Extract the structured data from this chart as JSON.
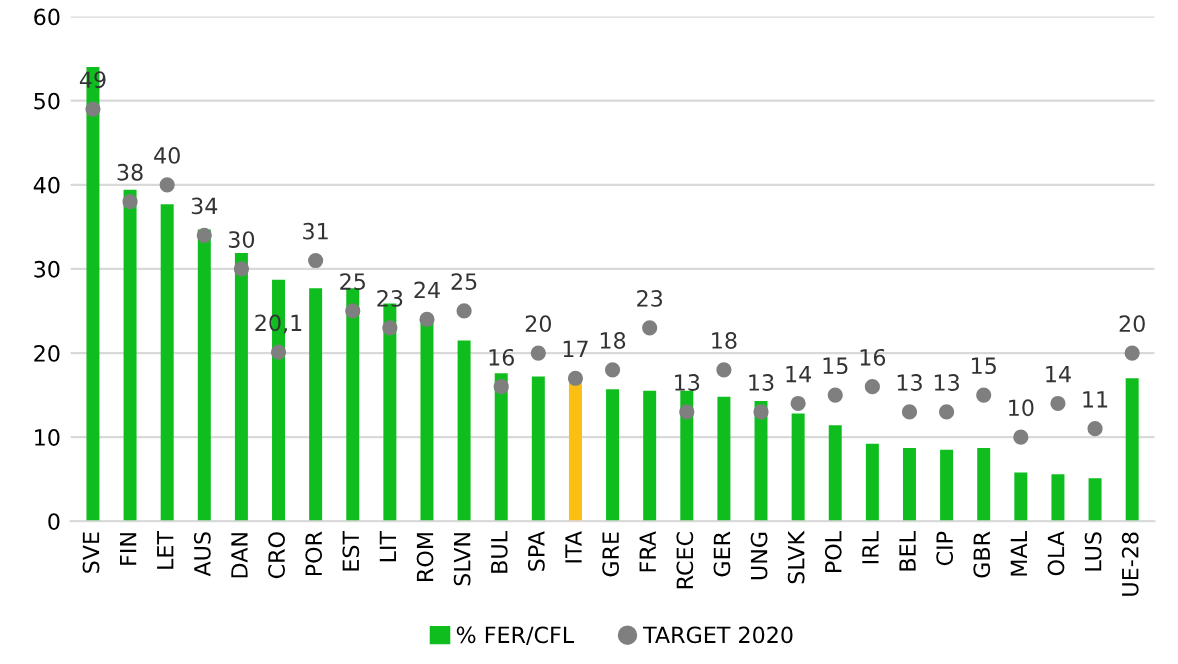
{
  "chart_data": {
    "type": "bar",
    "categories": [
      "SVE",
      "FIN",
      "LET",
      "AUS",
      "DAN",
      "CRO",
      "POR",
      "EST",
      "LIT",
      "ROM",
      "SLVN",
      "BUL",
      "SPA",
      "ITA",
      "GRE",
      "FRA",
      "RCEC",
      "GER",
      "UNG",
      "SLVK",
      "POL",
      "IRL",
      "BEL",
      "CIP",
      "GBR",
      "MAL",
      "OLA",
      "LUS",
      "UE-28"
    ],
    "series": [
      {
        "name": "% FER/CFL",
        "color": "#0fbe1e",
        "colors": [
          "#0fbe1e",
          "#0fbe1e",
          "#0fbe1e",
          "#0fbe1e",
          "#0fbe1e",
          "#0fbe1e",
          "#0fbe1e",
          "#0fbe1e",
          "#0fbe1e",
          "#0fbe1e",
          "#0fbe1e",
          "#0fbe1e",
          "#0fbe1e",
          "#fbbf14",
          "#0fbe1e",
          "#0fbe1e",
          "#0fbe1e",
          "#0fbe1e",
          "#0fbe1e",
          "#0fbe1e",
          "#0fbe1e",
          "#0fbe1e",
          "#0fbe1e",
          "#0fbe1e",
          "#0fbe1e",
          "#0fbe1e",
          "#0fbe1e",
          "#0fbe1e",
          "#0fbe1e"
        ],
        "values": [
          54,
          39.4,
          37.7,
          34.7,
          31.9,
          28.7,
          27.7,
          27.7,
          25.9,
          24,
          21.5,
          17.6,
          17.2,
          16.6,
          15.7,
          15.5,
          15.5,
          14.8,
          14.3,
          12.8,
          11.4,
          9.2,
          8.7,
          8.5,
          8.7,
          5.8,
          5.6,
          5.1,
          17
        ]
      },
      {
        "name": "TARGET 2020",
        "type": "scatter",
        "marker": "circle",
        "color": "#7f7f7f",
        "values": [
          49,
          38,
          40,
          34,
          30,
          20.1,
          31,
          25,
          23,
          24,
          25,
          16,
          20,
          17,
          18,
          23,
          13,
          18,
          13,
          14,
          15,
          16,
          13,
          13,
          15,
          10,
          14,
          11,
          20
        ],
        "value_labels": [
          "49",
          "38",
          "40",
          "34",
          "30",
          "20,1",
          "31",
          "25",
          "23",
          "24",
          "25",
          "16",
          "20",
          "17",
          "18",
          "23",
          "13",
          "18",
          "13",
          "14",
          "15",
          "16",
          "13",
          "13",
          "15",
          "10",
          "14",
          "11",
          "20"
        ]
      }
    ],
    "ylim": [
      0,
      60
    ],
    "yticks": [
      0,
      10,
      20,
      30,
      40,
      50,
      60
    ],
    "grid": "y",
    "legend": "bottom"
  }
}
